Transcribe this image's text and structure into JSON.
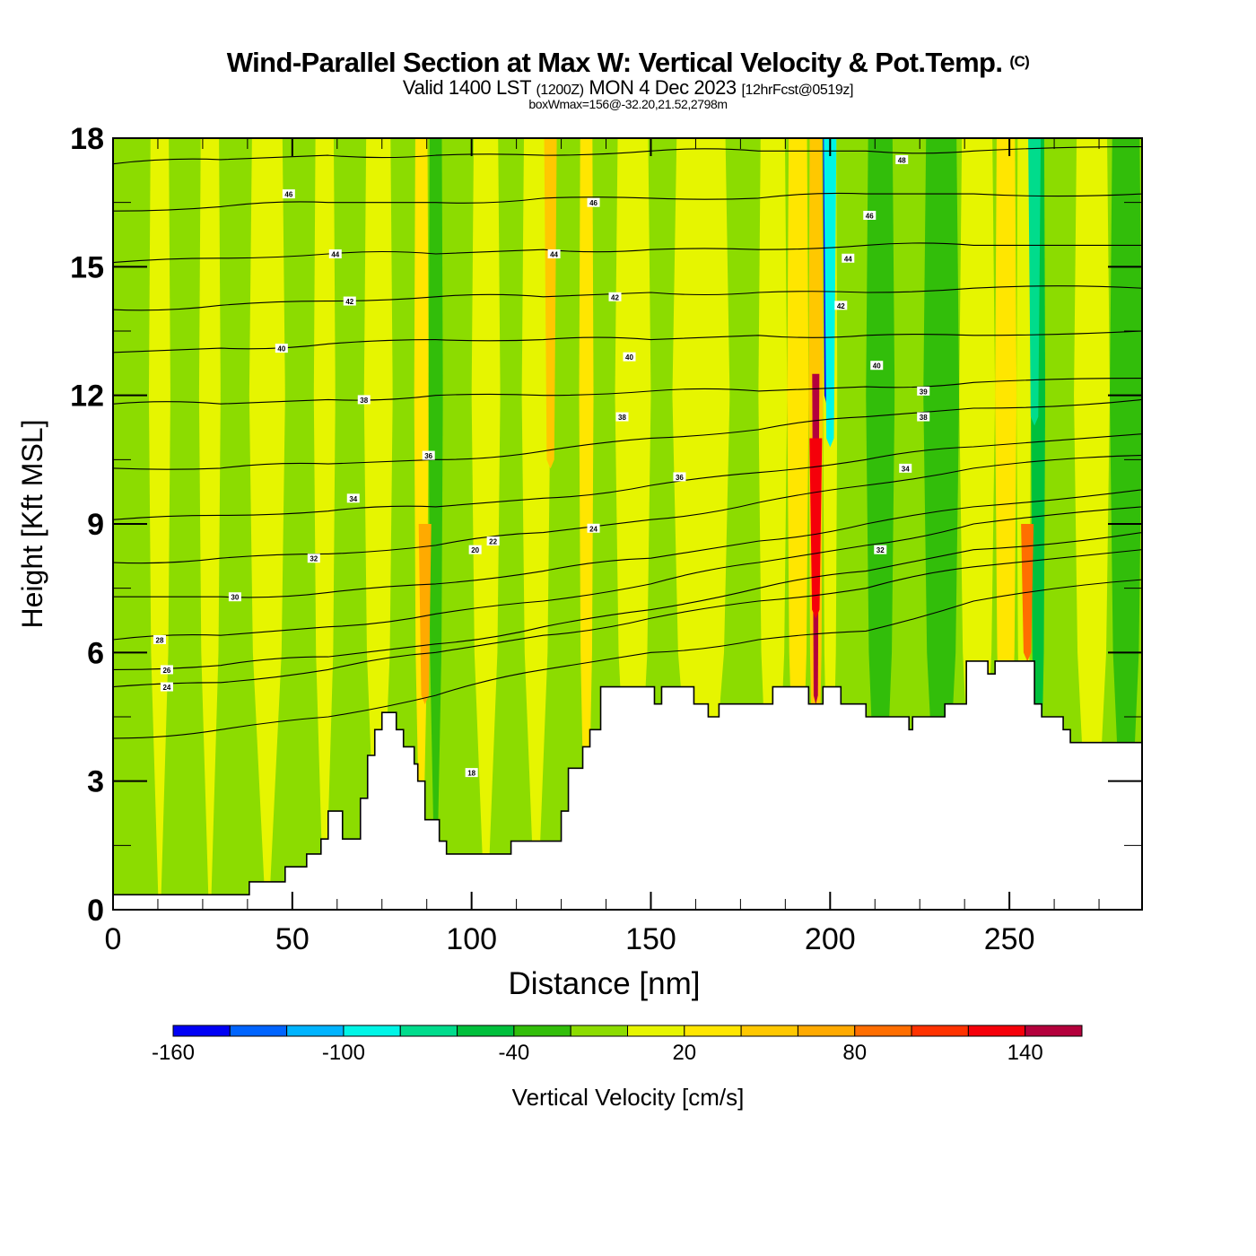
{
  "header": {
    "title": "Wind-Parallel Section at Max W: Vertical Velocity & Pot.Temp.",
    "copyright_mark": "(C)",
    "valid_prefix": "Valid 1400 LST",
    "valid_utc": "(1200Z)",
    "valid_date": "MON 4 Dec 2023",
    "forecast_info": "[12hrFcst@0519z]",
    "box_info": "boxWmax=156@-32.20,21.52,2798m"
  },
  "chart_data": {
    "type": "heatmap",
    "title": "Wind-Parallel Section at Max W: Vertical Velocity & Pot.Temp.",
    "subtitle": "Valid 1400 LST (1200Z) MON 4 Dec 2023 [12hrFcst@0519z]",
    "annotation": "boxWmax=156@-32.20,21.52,2798m",
    "xlabel": "Distance [nm]",
    "ylabel": "Height [Kft MSL]",
    "xlim": [
      0,
      287
    ],
    "ylim": [
      0,
      18
    ],
    "xticks": [
      0,
      50,
      100,
      150,
      200,
      250
    ],
    "xtick_labels": [
      "0",
      "50",
      "100",
      "150",
      "200",
      "250"
    ],
    "x_minor_step": 12.5,
    "yticks": [
      0,
      3,
      6,
      9,
      12,
      15,
      18
    ],
    "ytick_labels": [
      "0",
      "3",
      "6",
      "9",
      "12",
      "15",
      "18"
    ],
    "y_minor_step": 1.5,
    "colorbar": {
      "label": "Vertical Velocity [cm/s]",
      "placement": "bottom",
      "bounds": [
        -160,
        -140,
        -120,
        -100,
        -80,
        -60,
        -40,
        -20,
        0,
        20,
        40,
        60,
        80,
        100,
        120,
        140,
        160
      ],
      "tick_values": [
        -160,
        -100,
        -40,
        20,
        80,
        140
      ],
      "tick_labels": [
        "-160",
        "-100",
        "-40",
        "20",
        "80",
        "140"
      ],
      "colors": [
        "#0000f5",
        "#0064ff",
        "#00b4ff",
        "#00f5e6",
        "#00dc8c",
        "#00c03c",
        "#32be0a",
        "#8cdc00",
        "#e6f500",
        "#ffe600",
        "#ffc800",
        "#ffaa00",
        "#ff6e00",
        "#ff3200",
        "#f5000a",
        "#b4003c"
      ]
    },
    "velocity_field_bands": [
      {
        "x0": 0,
        "x1": 4,
        "level": 7
      },
      {
        "x0": 4,
        "x1": 10,
        "level": 7
      },
      {
        "x0": 10,
        "x1": 16,
        "level": 8
      },
      {
        "x0": 16,
        "x1": 24,
        "level": 7
      },
      {
        "x0": 24,
        "x1": 30,
        "level": 8
      },
      {
        "x0": 30,
        "x1": 38,
        "level": 7
      },
      {
        "x0": 38,
        "x1": 48,
        "level": 8
      },
      {
        "x0": 48,
        "x1": 56,
        "level": 7
      },
      {
        "x0": 56,
        "x1": 62,
        "level": 8
      },
      {
        "x0": 62,
        "x1": 70,
        "level": 7
      },
      {
        "x0": 70,
        "x1": 78,
        "level": 8
      },
      {
        "x0": 78,
        "x1": 84,
        "level": 7
      },
      {
        "x0": 84,
        "x1": 88,
        "level": 9
      },
      {
        "x0": 88,
        "x1": 92,
        "level": 6
      },
      {
        "x0": 92,
        "x1": 100,
        "level": 7
      },
      {
        "x0": 100,
        "x1": 108,
        "level": 8
      },
      {
        "x0": 108,
        "x1": 114,
        "level": 7
      },
      {
        "x0": 114,
        "x1": 122,
        "level": 8
      },
      {
        "x0": 122,
        "x1": 130,
        "level": 7
      },
      {
        "x0": 130,
        "x1": 134,
        "level": 9
      },
      {
        "x0": 134,
        "x1": 140,
        "level": 7
      },
      {
        "x0": 140,
        "x1": 150,
        "level": 8
      },
      {
        "x0": 150,
        "x1": 156,
        "level": 7
      },
      {
        "x0": 156,
        "x1": 172,
        "level": 8
      },
      {
        "x0": 172,
        "x1": 180,
        "level": 7
      },
      {
        "x0": 180,
        "x1": 188,
        "level": 8
      },
      {
        "x0": 188,
        "x1": 194,
        "level": 9
      },
      {
        "x0": 194,
        "x1": 198,
        "level": 10
      },
      {
        "x0": 198,
        "x1": 202,
        "level": 8
      },
      {
        "x0": 202,
        "x1": 210,
        "level": 7
      },
      {
        "x0": 210,
        "x1": 218,
        "level": 6
      },
      {
        "x0": 218,
        "x1": 226,
        "level": 7
      },
      {
        "x0": 226,
        "x1": 236,
        "level": 6
      },
      {
        "x0": 236,
        "x1": 246,
        "level": 8
      },
      {
        "x0": 246,
        "x1": 252,
        "level": 9
      },
      {
        "x0": 252,
        "x1": 256,
        "level": 8
      },
      {
        "x0": 256,
        "x1": 260,
        "level": 5
      },
      {
        "x0": 260,
        "x1": 268,
        "level": 7
      },
      {
        "x0": 268,
        "x1": 278,
        "level": 8
      },
      {
        "x0": 278,
        "x1": 287,
        "level": 6
      }
    ],
    "velocity_features": [
      {
        "name": "updraft-max",
        "x": 196,
        "y0": 5,
        "y1": 12.5,
        "level": 15
      },
      {
        "name": "updraft-core",
        "x": 196,
        "y0": 7,
        "y1": 11,
        "level": 14
      },
      {
        "name": "downdraft-max",
        "x": 199,
        "y0": 12,
        "y1": 18,
        "level": 0
      },
      {
        "name": "downdraft-edge",
        "x": 200,
        "y0": 11,
        "y1": 18,
        "level": 3
      },
      {
        "name": "downdraft-east",
        "x": 257,
        "y0": 11.5,
        "y1": 18,
        "level": 4
      },
      {
        "name": "updraft-west-ridge",
        "x": 87,
        "y0": 5,
        "y1": 9,
        "level": 11
      },
      {
        "name": "updraft-east",
        "x": 255,
        "y0": 6,
        "y1": 9,
        "level": 12
      },
      {
        "name": "updraft-mid",
        "x": 122,
        "y0": 10.5,
        "y1": 18,
        "level": 10
      }
    ],
    "terrain_kft": [
      [
        0,
        0.35
      ],
      [
        38,
        0.35
      ],
      [
        38,
        0.65
      ],
      [
        48,
        0.65
      ],
      [
        48,
        1.0
      ],
      [
        54,
        1.0
      ],
      [
        54,
        1.3
      ],
      [
        58,
        1.3
      ],
      [
        58,
        1.65
      ],
      [
        60,
        1.65
      ],
      [
        60,
        2.3
      ],
      [
        64,
        2.3
      ],
      [
        64,
        1.65
      ],
      [
        69,
        1.65
      ],
      [
        69,
        2.6
      ],
      [
        71,
        2.6
      ],
      [
        71,
        3.6
      ],
      [
        73,
        3.6
      ],
      [
        73,
        4.2
      ],
      [
        75,
        4.2
      ],
      [
        75,
        4.6
      ],
      [
        79,
        4.6
      ],
      [
        79,
        4.2
      ],
      [
        81,
        4.2
      ],
      [
        81,
        3.8
      ],
      [
        84,
        3.8
      ],
      [
        84,
        3.4
      ],
      [
        85,
        3.4
      ],
      [
        85,
        3.0
      ],
      [
        87,
        3.0
      ],
      [
        87,
        2.1
      ],
      [
        91,
        2.1
      ],
      [
        91,
        1.6
      ],
      [
        93,
        1.6
      ],
      [
        93,
        1.3
      ],
      [
        111,
        1.3
      ],
      [
        111,
        1.6
      ],
      [
        125,
        1.6
      ],
      [
        125,
        2.3
      ],
      [
        127,
        2.3
      ],
      [
        127,
        3.3
      ],
      [
        131,
        3.3
      ],
      [
        131,
        3.8
      ],
      [
        133,
        3.8
      ],
      [
        133,
        4.2
      ],
      [
        136,
        4.2
      ],
      [
        136,
        5.2
      ],
      [
        151,
        5.2
      ],
      [
        151,
        4.8
      ],
      [
        153,
        4.8
      ],
      [
        153,
        5.2
      ],
      [
        162,
        5.2
      ],
      [
        162,
        4.8
      ],
      [
        166,
        4.8
      ],
      [
        166,
        4.5
      ],
      [
        169,
        4.5
      ],
      [
        169,
        4.8
      ],
      [
        184,
        4.8
      ],
      [
        184,
        5.2
      ],
      [
        194,
        5.2
      ],
      [
        194,
        4.8
      ],
      [
        198,
        4.8
      ],
      [
        198,
        5.2
      ],
      [
        203,
        5.2
      ],
      [
        203,
        4.8
      ],
      [
        210,
        4.8
      ],
      [
        210,
        4.5
      ],
      [
        222,
        4.5
      ],
      [
        222,
        4.2
      ],
      [
        223,
        4.2
      ],
      [
        223,
        4.5
      ],
      [
        232,
        4.5
      ],
      [
        232,
        4.8
      ],
      [
        238,
        4.8
      ],
      [
        238,
        5.8
      ],
      [
        244,
        5.8
      ],
      [
        244,
        5.5
      ],
      [
        246,
        5.5
      ],
      [
        246,
        5.8
      ],
      [
        257,
        5.8
      ],
      [
        257,
        4.8
      ],
      [
        259,
        4.8
      ],
      [
        259,
        4.5
      ],
      [
        265,
        4.5
      ],
      [
        265,
        4.2
      ],
      [
        267,
        4.2
      ],
      [
        267,
        3.9
      ],
      [
        287,
        3.9
      ]
    ],
    "theta_contours": [
      {
        "value": 22,
        "y_kft": [
          4.0,
          4.2,
          4.5,
          5.0,
          5.6,
          6.0,
          6.3,
          6.5,
          7.2,
          7.7
        ]
      },
      {
        "value": 24,
        "y_kft": [
          5.2,
          5.3,
          5.6,
          6.0,
          6.4,
          6.8,
          7.2,
          7.5,
          8.0,
          8.4
        ]
      },
      {
        "value": 26,
        "y_kft": [
          5.6,
          5.7,
          5.9,
          6.2,
          6.6,
          7.0,
          7.5,
          7.9,
          8.4,
          8.8
        ]
      },
      {
        "value": 28,
        "y_kft": [
          6.3,
          6.4,
          6.6,
          6.9,
          7.2,
          7.6,
          8.1,
          8.5,
          9.0,
          9.4
        ]
      },
      {
        "value": 30,
        "y_kft": [
          7.3,
          7.3,
          7.4,
          7.6,
          7.9,
          8.2,
          8.6,
          9.0,
          9.4,
          9.8
        ]
      },
      {
        "value": 32,
        "y_kft": [
          8.1,
          8.2,
          8.3,
          8.5,
          8.8,
          9.1,
          9.5,
          9.9,
          10.3,
          10.6
        ]
      },
      {
        "value": 34,
        "y_kft": [
          9.1,
          9.2,
          9.3,
          9.4,
          9.6,
          9.9,
          10.2,
          10.5,
          10.8,
          11.1
        ]
      },
      {
        "value": 36,
        "y_kft": [
          10.3,
          10.3,
          10.4,
          10.5,
          10.7,
          11.0,
          11.2,
          11.5,
          11.7,
          11.9
        ]
      },
      {
        "value": 38,
        "y_kft": [
          11.8,
          11.8,
          11.9,
          12.0,
          12.0,
          12.1,
          12.1,
          12.2,
          12.3,
          12.4
        ]
      },
      {
        "value": 40,
        "y_kft": [
          13.0,
          13.1,
          13.2,
          13.3,
          13.3,
          13.3,
          13.4,
          13.4,
          13.4,
          13.5
        ]
      },
      {
        "value": 42,
        "y_kft": [
          14.0,
          14.1,
          14.2,
          14.3,
          14.3,
          14.4,
          14.4,
          14.4,
          14.5,
          14.5
        ]
      },
      {
        "value": 44,
        "y_kft": [
          15.1,
          15.2,
          15.3,
          15.3,
          15.4,
          15.4,
          15.4,
          15.5,
          15.5,
          15.5
        ]
      },
      {
        "value": 46,
        "y_kft": [
          16.3,
          16.4,
          16.5,
          16.5,
          16.6,
          16.6,
          16.6,
          16.7,
          16.7,
          16.7
        ]
      },
      {
        "value": 48,
        "y_kft": [
          17.4,
          17.5,
          17.6,
          17.6,
          17.6,
          17.7,
          17.7,
          17.7,
          17.7,
          17.8
        ]
      }
    ],
    "theta_contour_x": [
      0,
      30,
      60,
      90,
      120,
      150,
      180,
      210,
      240,
      287
    ],
    "contour_labels": [
      {
        "text": "46",
        "x": 49,
        "y": 16.7
      },
      {
        "text": "44",
        "x": 62,
        "y": 15.3
      },
      {
        "text": "42",
        "x": 66,
        "y": 14.2
      },
      {
        "text": "40",
        "x": 47,
        "y": 13.1
      },
      {
        "text": "38",
        "x": 70,
        "y": 11.9
      },
      {
        "text": "36",
        "x": 88,
        "y": 10.6
      },
      {
        "text": "34",
        "x": 67,
        "y": 9.6
      },
      {
        "text": "32",
        "x": 56,
        "y": 8.2
      },
      {
        "text": "30",
        "x": 34,
        "y": 7.3
      },
      {
        "text": "28",
        "x": 13,
        "y": 6.3
      },
      {
        "text": "26",
        "x": 15,
        "y": 5.6
      },
      {
        "text": "24",
        "x": 15,
        "y": 5.2
      },
      {
        "text": "20",
        "x": 101,
        "y": 8.4
      },
      {
        "text": "22",
        "x": 106,
        "y": 8.6
      },
      {
        "text": "24",
        "x": 134,
        "y": 8.9
      },
      {
        "text": "46",
        "x": 134,
        "y": 16.5
      },
      {
        "text": "44",
        "x": 123,
        "y": 15.3
      },
      {
        "text": "42",
        "x": 140,
        "y": 14.3
      },
      {
        "text": "40",
        "x": 144,
        "y": 12.9
      },
      {
        "text": "38",
        "x": 142,
        "y": 11.5
      },
      {
        "text": "36",
        "x": 158,
        "y": 10.1
      },
      {
        "text": "48",
        "x": 220,
        "y": 17.5
      },
      {
        "text": "46",
        "x": 211,
        "y": 16.2
      },
      {
        "text": "44",
        "x": 205,
        "y": 15.2
      },
      {
        "text": "42",
        "x": 203,
        "y": 14.1
      },
      {
        "text": "40",
        "x": 213,
        "y": 12.7
      },
      {
        "text": "39",
        "x": 226,
        "y": 12.1
      },
      {
        "text": "38",
        "x": 226,
        "y": 11.5
      },
      {
        "text": "34",
        "x": 221,
        "y": 10.3
      },
      {
        "text": "32",
        "x": 214,
        "y": 8.4
      },
      {
        "text": "18",
        "x": 100,
        "y": 3.2
      }
    ]
  }
}
